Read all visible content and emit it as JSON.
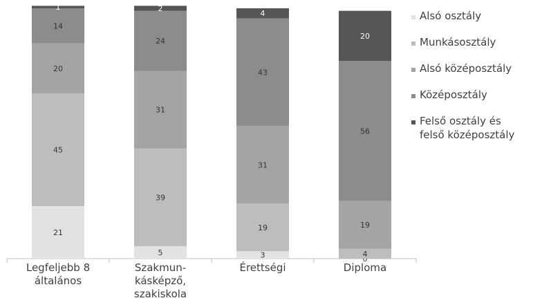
{
  "chart_data": {
    "type": "bar",
    "stacked": true,
    "categories": [
      [
        "Legfeljebb 8",
        "általános"
      ],
      [
        "Szakmun-",
        "kásképző,",
        "szakiskola"
      ],
      [
        "Érettségi"
      ],
      [
        "Diploma"
      ]
    ],
    "series": [
      {
        "name": "Alsó osztály",
        "color": "#e2e2e2",
        "label_color": "#333333",
        "values": [
          21,
          5,
          3,
          0
        ]
      },
      {
        "name": "Munkásosztály",
        "color": "#bdbdbd",
        "label_color": "#333333",
        "values": [
          45,
          39,
          19,
          4
        ]
      },
      {
        "name": "Alsó középosztály",
        "color": "#a4a4a4",
        "label_color": "#333333",
        "values": [
          20,
          31,
          31,
          19
        ]
      },
      {
        "name": "Középosztály",
        "color": "#8c8c8c",
        "label_color": "#333333",
        "values": [
          14,
          24,
          43,
          56
        ]
      },
      {
        "name": "Felső osztály és felső középosztály",
        "color": "#555555",
        "label_color": "#ffffff",
        "values": [
          1,
          2,
          4,
          20
        ]
      }
    ],
    "legend_position": "right",
    "ylim": [
      0,
      100
    ],
    "grid": false
  }
}
